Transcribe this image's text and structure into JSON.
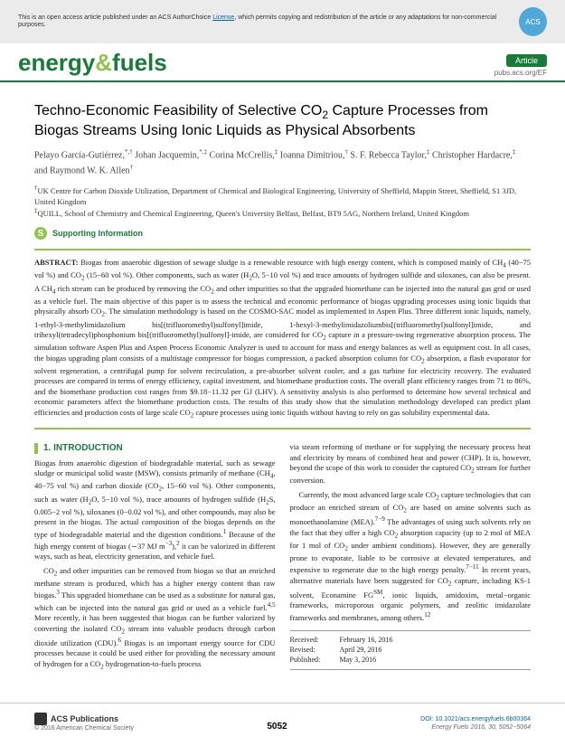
{
  "top_banner": {
    "text_before": "This is an open access article published under an ACS AuthorChoice ",
    "link": "License",
    "text_after": ", which permits copying and redistribution of the article or any adaptations for non-commercial purposes."
  },
  "journal": {
    "energy": "energy",
    "amp": "&",
    "fuels": "fuels"
  },
  "header_right": {
    "badge": "Article",
    "url": "pubs.acs.org/EF"
  },
  "title_parts": [
    "Techno-Economic Feasibility of Selective CO",
    "2",
    " Capture Processes from Biogas Streams Using Ionic Liquids as Physical Absorbents"
  ],
  "authors_html": "Pelayo García-Gutiérrez,<span class='sup'>*,†</span> Johan Jacquemin,<span class='sup'>*,‡</span> Corina McCrellis,<span class='sup'>‡</span> Ioanna Dimitriou,<span class='sup'>†</span> S. F. Rebecca Taylor,<span class='sup'>‡</span> Christopher Hardacre,<span class='sup'>‡</span> and Raymond W. K. Allen<span class='sup'>†</span>",
  "affiliations": [
    "<span class='sup'>†</span>UK Centre for Carbon Dioxide Utilization, Department of Chemical and Biological Engineering, University of Sheffield, Mappin Street, Sheffield, S1 3JD, United Kingdom",
    "<span class='sup'>‡</span>QUILL, School of Chemistry and Chemical Engineering, Queen's University Belfast, Belfast, BT9 5AG, Northern Ireland, United Kingdom"
  ],
  "supinfo": "Supporting Information",
  "abstract": "<b>ABSTRACT:</b> Biogas from anaerobic digestion of sewage sludge is a renewable resource with high energy content, which is composed mainly of CH<sub>4</sub> (40−75 vol %) and CO<sub>2</sub> (15−60 vol %). Other components, such as water (H<sub>2</sub>O, 5−10 vol %) and trace amounts of hydrogen sulfide and siloxanes, can also be present. A CH<sub>4</sub> rich stream can be produced by removing the CO<sub>2</sub> and other impurities so that the upgraded biomethane can be injected into the natural gas grid or used as a vehicle fuel. The main objective of this paper is to assess the technical and economic performance of biogas upgrading processes using ionic liquids that physically absorb CO<sub>2</sub>. The simulation methodology is based on the COSMO-SAC model as implemented in Aspen Plus. Three different ionic liquids, namely, 1-ethyl-3-methylimidazolium bis[(trifluoromethyl)sulfonyl]imide, 1-hexyl-3-methylimidazoliumbis[(trifluoromethyl)sulfonyl]imide, and trihexyl(tetradecyl)phosphonium bis[(trifluoromethyl)sulfonyl]-imide, are considered for CO<sub>2</sub> capture in a pressure-swing regenerative absorption process. The simulation software Aspen Plus and Aspen Process Economic Analyzer is used to account for mass and energy balances as well as equipment cost. In all cases, the biogas upgrading plant consists of a multistage compressor for biogas compression, a packed absorption column for CO<sub>2</sub> absorption, a flash evaporator for solvent regeneration, a centrifugal pump for solvent recirculation, a pre-absorber solvent cooler, and a gas turbine for electricity recovery. The evaluated processes are compared in terms of energy efficiency, capital investment, and biomethane production costs. The overall plant efficiency ranges from 71 to 86%, and the biomethane production cost ranges from $9.18−11.32 per GJ (LHV). A sensitivity analysis is also performed to determine how several technical and economic parameters affect the biomethane production costs. The results of this study show that the simulation methodology developed can predict plant efficiencies and production costs of large scale CO<sub>2</sub> capture processes using ionic liquids without having to rely on gas solubility experimental data.",
  "intro": {
    "heading": "1. INTRODUCTION",
    "col1": [
      "Biogas from anaerobic digestion of biodegradable material, such as sewage sludge or municipal solid waste (MSW), consists primarily of methane (CH<sub>4</sub>, 40−75 vol %) and carbon dioxide (CO<sub>2</sub>, 15−60 vol %). Other components, such as water (H<sub>2</sub>O, 5−10 vol %), trace amounts of hydrogen sulfide (H<sub>2</sub>S, 0.005−2 vol %), siloxanes (0−0.02 vol %), and other compounds, may also be present in the biogas. The actual composition of the biogas depends on the type of biodegradable material and the digestion conditions.<sup>1</sup> Because of the high energy content of biogas (∼37 MJ m<sup>−3</sup>),<sup>2</sup> it can be valorized in different ways, such as heat, electricity generation, and vehicle fuel.",
      "CO<sub>2</sub> and other impurities can be removed from biogas so that an enriched methane stream is produced, which has a higher energy content than raw biogas.<sup>3</sup> This upgraded biomethane can be used as a substitute for natural gas, which can be injected into the natural gas grid or used as a vehicle fuel.<sup>4,5</sup> More recently, it has been suggested that biogas can be further valorized by converting the isolated CO<sub>2</sub> stream into valuable products through carbon dioxide utilization (CDU).<sup>6</sup> Biogas is an important energy source for CDU processes because it could be used either for providing the necessary amount of hydrogen for a CO<sub>2</sub> hydrogenation-to-fuels process"
    ],
    "col2": [
      "via steam reforming of methane or for supplying the necessary process heat and electricity by means of combined heat and power (CHP). It is, however, beyond the scope of this work to consider the captured CO<sub>2</sub> stream for further conversion.",
      "Currently, the most advanced large scale CO<sub>2</sub> capture technologies that can produce an enriched stream of CO<sub>2</sub> are based on amine solvents such as monoethanolamine (MEA).<sup>7−9</sup> The advantages of using such solvents rely on the fact that they offer a high CO<sub>2</sub> absorption capacity (up to 2 mol of MEA for 1 mol of CO<sub>2</sub> under ambient conditions). However, they are generally prone to evaporate, liable to be corrosive at elevated temperatures, and expensive to regenerate due to the high energy penalty.<sup>7−11</sup> In recent years, alternative materials have been suggested for CO<sub>2</sub> capture, including KS-1 solvent, Econamine FG<sup>SM</sup>, ionic liquids, amidoxim, metal−organic frameworks, microporous organic polymers, and zeolitic imidazolate frameworks and membranes, among others.<sup>12</sup>"
    ]
  },
  "dates": {
    "received": "February 16, 2016",
    "revised": "April 29, 2016",
    "published": "May 3, 2016"
  },
  "footer": {
    "acs": "ACS Publications",
    "copyright": "© 2016 American Chemical Society",
    "page": "5052",
    "doi": "DOI: 10.1021/acs.energyfuels.6b00364",
    "cite": "Energy Fuels 2016, 30, 5052−5064"
  }
}
